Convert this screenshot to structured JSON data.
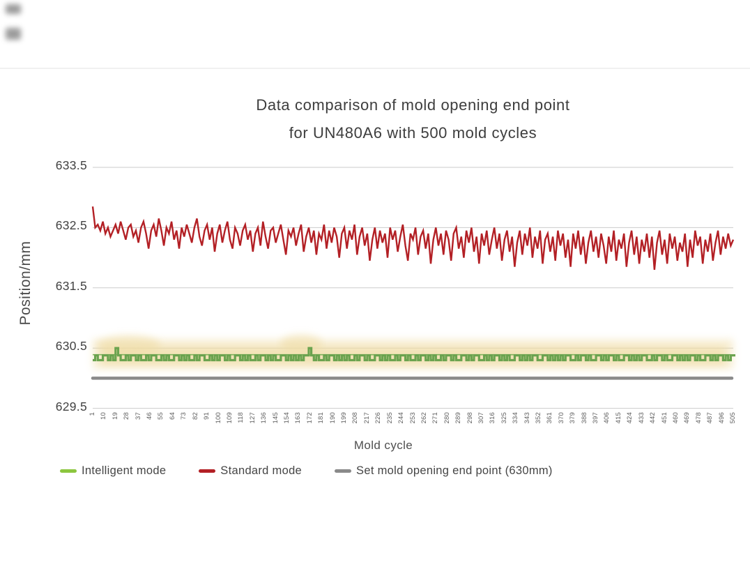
{
  "title": {
    "line1": "Data comparison of mold opening end point",
    "line2": "for UN480A6 with 500 mold cycles"
  },
  "decor": {
    "top_left_blurred_marks": 2
  },
  "colors": {
    "intelligent_green": "#8CC63F",
    "intelligent_line_green": "#6BA34F",
    "standard_red": "#B32025",
    "setpoint_gray": "#8A8A8A",
    "gridline": "#CBCBCB",
    "glow_band": "#EFDCA4"
  },
  "chart_data": {
    "type": "line",
    "title": "Data comparison of mold opening end point for UN480A6 with 500 mold cycles",
    "xlabel": "Mold cycle",
    "ylabel": "Position/mm",
    "ylim": [
      629.5,
      633.5
    ],
    "y_ticks": [
      "633.5",
      "632.5",
      "631.5",
      "630.5",
      "629.5"
    ],
    "grid": "horizontal",
    "legend_position": "bottom",
    "x_tick_labels": [
      "1",
      "10",
      "19",
      "28",
      "37",
      "46",
      "55",
      "64",
      "73",
      "82",
      "91",
      "100",
      "109",
      "118",
      "127",
      "136",
      "145",
      "154",
      "163",
      "172",
      "181",
      "190",
      "199",
      "208",
      "217",
      "226",
      "235",
      "244",
      "253",
      "262",
      "271",
      "280",
      "289",
      "298",
      "307",
      "316",
      "325",
      "334",
      "343",
      "352",
      "361",
      "370",
      "379",
      "388",
      "397",
      "406",
      "415",
      "424",
      "433",
      "442",
      "451",
      "460",
      "469",
      "478",
      "487",
      "496",
      "505"
    ],
    "x_start": 1,
    "x_step": 2,
    "x_end": 505,
    "series": [
      {
        "name": "Intelligent mode",
        "color": "#8CC63F",
        "line_color": "#6BA34F",
        "style": "step-with-glow",
        "values": [
          630.3,
          630.38,
          630.3,
          630.3,
          630.38,
          630.38,
          630.3,
          630.38,
          630.3,
          630.5,
          630.38,
          630.3,
          630.3,
          630.38,
          630.3,
          630.38,
          630.38,
          630.3,
          630.38,
          630.3,
          630.3,
          630.38,
          630.3,
          630.38,
          630.38,
          630.3,
          630.3,
          630.38,
          630.3,
          630.38,
          630.3,
          630.3,
          630.38,
          630.38,
          630.3,
          630.38,
          630.3,
          630.38,
          630.3,
          630.3,
          630.38,
          630.3,
          630.38,
          630.38,
          630.3,
          630.3,
          630.38,
          630.3,
          630.38,
          630.3,
          630.38,
          630.38,
          630.3,
          630.38,
          630.3,
          630.3,
          630.38,
          630.38,
          630.3,
          630.38,
          630.3,
          630.38,
          630.3,
          630.3,
          630.38,
          630.3,
          630.38,
          630.38,
          630.3,
          630.38,
          630.3,
          630.38,
          630.3,
          630.3,
          630.38,
          630.38,
          630.3,
          630.38,
          630.3,
          630.38,
          630.3,
          630.38,
          630.3,
          630.38,
          630.38,
          630.5,
          630.38,
          630.3,
          630.38,
          630.3,
          630.3,
          630.38,
          630.3,
          630.38,
          630.38,
          630.3,
          630.38,
          630.3,
          630.38,
          630.3,
          630.38,
          630.3,
          630.3,
          630.38,
          630.3,
          630.38,
          630.38,
          630.3,
          630.38,
          630.3,
          630.3,
          630.38,
          630.38,
          630.3,
          630.38,
          630.3,
          630.38,
          630.3,
          630.3,
          630.38,
          630.3,
          630.38,
          630.38,
          630.3,
          630.38,
          630.3,
          630.3,
          630.38,
          630.3,
          630.38,
          630.38,
          630.3,
          630.38,
          630.3,
          630.38,
          630.3,
          630.3,
          630.38,
          630.3,
          630.38,
          630.38,
          630.3,
          630.38,
          630.3,
          630.3,
          630.38,
          630.38,
          630.3,
          630.38,
          630.3,
          630.38,
          630.38,
          630.3,
          630.3,
          630.38,
          630.3,
          630.38,
          630.3,
          630.38,
          630.38,
          630.3,
          630.38,
          630.3,
          630.38,
          630.3,
          630.3,
          630.38,
          630.38,
          630.3,
          630.38,
          630.3,
          630.38,
          630.3,
          630.38,
          630.38,
          630.3,
          630.3,
          630.38,
          630.38,
          630.3,
          630.38,
          630.3,
          630.38,
          630.3,
          630.38,
          630.3,
          630.38,
          630.38,
          630.3,
          630.3,
          630.38,
          630.3,
          630.38,
          630.38,
          630.3,
          630.38,
          630.3,
          630.3,
          630.38,
          630.38,
          630.3,
          630.38,
          630.3,
          630.38,
          630.38,
          630.3,
          630.38,
          630.3,
          630.3,
          630.38,
          630.38,
          630.3,
          630.38,
          630.3,
          630.38,
          630.3,
          630.38,
          630.38,
          630.3,
          630.3,
          630.38,
          630.3,
          630.38,
          630.38,
          630.3,
          630.38,
          630.3,
          630.3,
          630.38,
          630.38,
          630.3,
          630.38,
          630.3,
          630.38,
          630.3,
          630.38,
          630.38,
          630.3,
          630.38,
          630.3,
          630.3,
          630.38,
          630.38,
          630.3,
          630.38,
          630.3,
          630.38,
          630.38,
          630.3,
          630.38,
          630.3,
          630.38,
          630.38
        ]
      },
      {
        "name": "Standard mode",
        "color": "#B32025",
        "style": "line",
        "values": [
          632.85,
          632.5,
          632.55,
          632.45,
          632.6,
          632.4,
          632.5,
          632.35,
          632.45,
          632.55,
          632.4,
          632.6,
          632.45,
          632.3,
          632.5,
          632.55,
          632.35,
          632.45,
          632.25,
          632.5,
          632.6,
          632.4,
          632.15,
          632.45,
          632.55,
          632.35,
          632.65,
          632.45,
          632.2,
          632.5,
          632.4,
          632.6,
          632.3,
          632.45,
          632.15,
          632.5,
          632.35,
          632.55,
          632.4,
          632.25,
          632.5,
          632.65,
          632.35,
          632.2,
          632.45,
          632.55,
          632.3,
          632.5,
          632.1,
          632.4,
          632.55,
          632.25,
          632.45,
          632.6,
          632.3,
          632.15,
          632.5,
          632.4,
          632.2,
          632.45,
          632.55,
          632.3,
          632.45,
          632.1,
          632.4,
          632.5,
          632.2,
          632.6,
          632.35,
          632.15,
          632.45,
          632.5,
          632.25,
          632.4,
          632.55,
          632.3,
          632.05,
          632.45,
          632.35,
          632.5,
          632.2,
          632.4,
          632.55,
          632.1,
          632.35,
          632.5,
          632.25,
          632.45,
          632.05,
          632.4,
          632.3,
          632.55,
          632.15,
          632.45,
          632.25,
          632.5,
          632.35,
          632.0,
          632.4,
          632.5,
          632.15,
          632.45,
          632.3,
          632.55,
          632.05,
          632.35,
          632.5,
          632.2,
          632.4,
          631.95,
          632.3,
          632.5,
          632.15,
          632.45,
          632.25,
          632.4,
          632.0,
          632.5,
          632.3,
          632.45,
          632.1,
          632.35,
          632.55,
          632.2,
          631.95,
          632.4,
          632.3,
          632.5,
          632.05,
          632.35,
          632.45,
          632.15,
          632.4,
          631.9,
          632.3,
          632.5,
          632.2,
          632.4,
          632.05,
          632.45,
          632.3,
          631.95,
          632.4,
          632.5,
          632.15,
          632.35,
          632.0,
          632.45,
          632.25,
          632.5,
          632.1,
          632.35,
          631.9,
          632.4,
          632.2,
          632.45,
          632.05,
          632.3,
          632.5,
          632.15,
          632.4,
          631.95,
          632.3,
          632.45,
          632.1,
          632.35,
          631.85,
          632.25,
          632.45,
          632.05,
          632.4,
          632.2,
          632.5,
          632.0,
          632.35,
          632.15,
          632.45,
          631.9,
          632.3,
          632.4,
          632.1,
          632.35,
          631.95,
          632.45,
          632.2,
          632.4,
          632.0,
          632.3,
          631.85,
          632.4,
          632.15,
          632.45,
          632.05,
          632.35,
          631.9,
          632.25,
          632.45,
          632.1,
          632.35,
          632.0,
          632.4,
          632.2,
          631.9,
          632.35,
          632.1,
          632.45,
          631.95,
          632.3,
          632.15,
          632.4,
          631.85,
          632.25,
          632.45,
          632.05,
          632.35,
          631.9,
          632.3,
          632.1,
          632.4,
          632.0,
          632.35,
          631.8,
          632.25,
          632.45,
          632.05,
          632.3,
          631.9,
          632.4,
          632.15,
          632.35,
          631.95,
          632.25,
          632.1,
          632.4,
          631.85,
          632.3,
          632.0,
          632.45,
          632.2,
          632.35,
          631.9,
          632.3,
          632.1,
          632.4,
          631.95,
          632.25,
          632.45,
          632.05,
          632.35,
          632.15,
          632.4,
          632.2,
          632.3
        ]
      },
      {
        "name": "Set mold opening end point (630mm)",
        "color": "#8A8A8A",
        "style": "horizontal-rule",
        "value": 630.0
      }
    ]
  }
}
